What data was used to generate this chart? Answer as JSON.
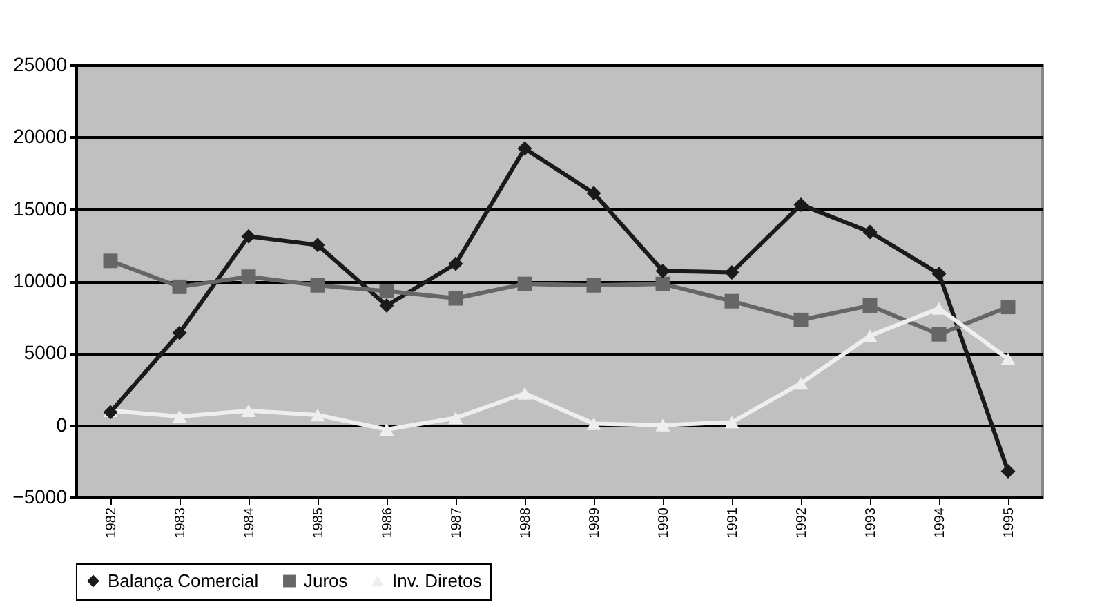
{
  "chart_data": {
    "type": "line",
    "categories": [
      "1982",
      "1983",
      "1984",
      "1985",
      "1986",
      "1987",
      "1988",
      "1989",
      "1990",
      "1991",
      "1992",
      "1993",
      "1994",
      "1995"
    ],
    "series": [
      {
        "name": "Balança Comercial",
        "color": "#1a1a1a",
        "marker": "diamond",
        "values": [
          900,
          6400,
          13100,
          12500,
          8300,
          11200,
          19200,
          16100,
          10700,
          10600,
          15300,
          13400,
          10500,
          -3200
        ]
      },
      {
        "name": "Juros",
        "color": "#666666",
        "marker": "square",
        "values": [
          11400,
          9600,
          10300,
          9700,
          9300,
          8800,
          9800,
          9700,
          9800,
          8600,
          7300,
          8300,
          6300,
          8200
        ]
      },
      {
        "name": "Inv. Diretos",
        "color": "#eeeeee",
        "marker": "triangle",
        "values": [
          1000,
          600,
          1000,
          700,
          -300,
          500,
          2200,
          100,
          0,
          200,
          2900,
          6200,
          8100,
          4600
        ]
      }
    ],
    "ylim": [
      -5000,
      25000
    ],
    "yticks": [
      -5000,
      0,
      5000,
      10000,
      15000,
      20000,
      25000
    ],
    "grid": "y",
    "legend": "bottom"
  }
}
